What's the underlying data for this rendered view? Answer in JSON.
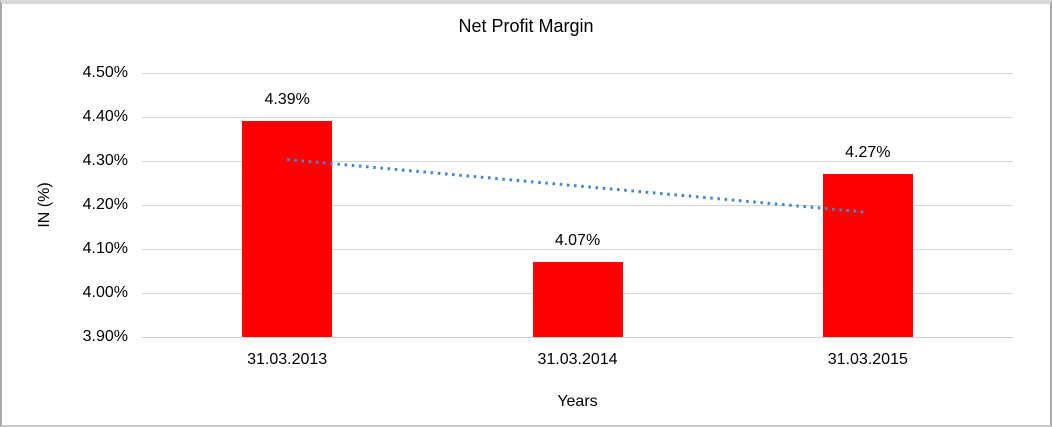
{
  "chart_data": {
    "type": "bar",
    "title": "Net Profit Margin",
    "xlabel": "Years",
    "ylabel": "IN (%)",
    "categories": [
      "31.03.2013",
      "31.03.2014",
      "31.03.2015"
    ],
    "series": [
      {
        "name": "Net Profit Margin",
        "values": [
          4.39,
          4.07,
          4.27
        ],
        "data_labels": [
          "4.39%",
          "4.07%",
          "4.27%"
        ],
        "color": "#ff0000"
      }
    ],
    "ylim": [
      3.9,
      4.5
    ],
    "yticks": [
      {
        "value": 4.5,
        "label": "4.50%"
      },
      {
        "value": 4.4,
        "label": "4.40%"
      },
      {
        "value": 4.3,
        "label": "4.30%"
      },
      {
        "value": 4.2,
        "label": "4.20%"
      },
      {
        "value": 4.1,
        "label": "4.10%"
      },
      {
        "value": 4.0,
        "label": "4.00%"
      },
      {
        "value": 3.9,
        "label": "3.90%"
      }
    ],
    "grid": true,
    "legend": "none",
    "trendline": {
      "type": "linear",
      "style": "dotted",
      "color": "#4a86c8",
      "of_series": "Net Profit Margin"
    }
  }
}
